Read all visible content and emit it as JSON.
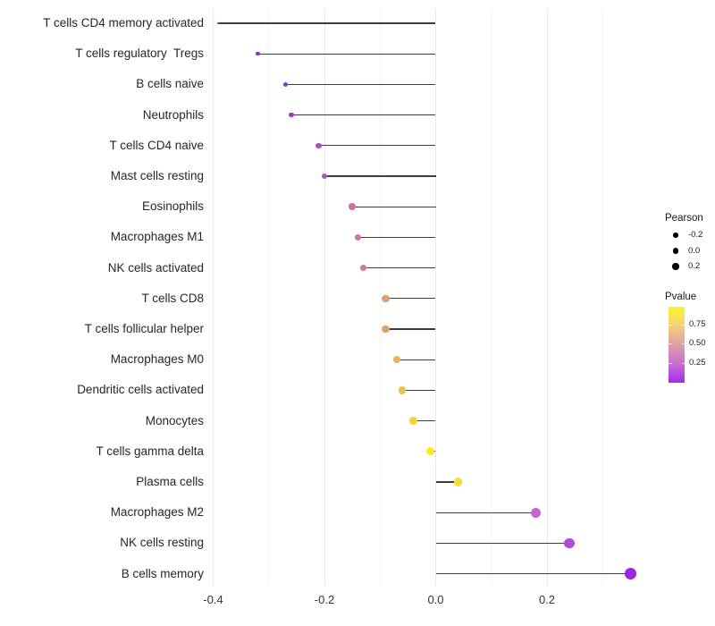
{
  "chart_data": {
    "type": "scatter",
    "variant": "lollipop",
    "orientation": "horizontal",
    "title": "",
    "xlabel": "",
    "ylabel": "",
    "x_tick_labels": [
      "-0.4",
      "-0.2",
      "0.0",
      "0.2"
    ],
    "x_tick_values": [
      -0.4,
      -0.2,
      0.0,
      0.2
    ],
    "x_minor_gridlines": [
      -0.3,
      -0.1,
      0.1,
      0.3
    ],
    "xlim": [
      -0.414,
      0.377
    ],
    "baseline": 0,
    "grid": true,
    "categories": [
      "T cells CD4 memory activated",
      "T cells regulatory  Tregs",
      "B cells naive",
      "Neutrophils",
      "T cells CD4 naive",
      "Mast cells resting",
      "Eosinophils",
      "Macrophages M1",
      "NK cells activated",
      "T cells CD8",
      "T cells follicular helper",
      "Macrophages M0",
      "Dendritic cells activated",
      "Monocytes",
      "T cells gamma delta",
      "Plasma cells",
      "Macrophages M2",
      "NK cells resting",
      "B cells memory"
    ],
    "points": [
      {
        "label": "T cells CD4 memory activated",
        "pearson": -0.39,
        "color": "#7A2ACD"
      },
      {
        "label": "T cells regulatory  Tregs",
        "pearson": -0.32,
        "color": "#8E2BD8"
      },
      {
        "label": "B cells naive",
        "pearson": -0.27,
        "color": "#9B33D4"
      },
      {
        "label": "Neutrophils",
        "pearson": -0.26,
        "color": "#9D36D2"
      },
      {
        "label": "T cells CD4 naive",
        "pearson": -0.21,
        "color": "#AE4CCB"
      },
      {
        "label": "Mast cells resting",
        "pearson": -0.2,
        "color": "#B250C8"
      },
      {
        "label": "Eosinophils",
        "pearson": -0.15,
        "color": "#CF6FA9"
      },
      {
        "label": "Macrophages M1",
        "pearson": -0.14,
        "color": "#D272A6"
      },
      {
        "label": "NK cells activated",
        "pearson": -0.13,
        "color": "#D4789E"
      },
      {
        "label": "T cells CD8",
        "pearson": -0.09,
        "color": "#E3A066"
      },
      {
        "label": "T cells follicular helper",
        "pearson": -0.09,
        "color": "#E3A166"
      },
      {
        "label": "Macrophages M0",
        "pearson": -0.07,
        "color": "#EAB25C"
      },
      {
        "label": "Dendritic cells activated",
        "pearson": -0.06,
        "color": "#EDBE53"
      },
      {
        "label": "Monocytes",
        "pearson": -0.04,
        "color": "#F2D53C"
      },
      {
        "label": "T cells gamma delta",
        "pearson": -0.01,
        "color": "#F8EC1C"
      },
      {
        "label": "Plasma cells",
        "pearson": 0.04,
        "color": "#F4DF3A"
      },
      {
        "label": "Macrophages M2",
        "pearson": 0.18,
        "color": "#C564C9"
      },
      {
        "label": "NK cells resting",
        "pearson": 0.24,
        "color": "#B44BD4"
      },
      {
        "label": "B cells memory",
        "pearson": 0.35,
        "color": "#9B27DF"
      }
    ],
    "legend": {
      "position": "right",
      "pearson": {
        "title": "Pearson",
        "labels": [
          "-0.2",
          "0.0",
          "0.2"
        ],
        "values": [
          -0.2,
          0.0,
          0.2
        ],
        "key_color": "#000000"
      },
      "pvalue": {
        "title": "Pvalue",
        "labels": [
          "0.75",
          "0.50",
          "0.25"
        ],
        "values": [
          0.75,
          0.5,
          0.25
        ],
        "gradient_top_to_bottom": [
          "#FAF32B",
          "#F7E455",
          "#F2CF7D",
          "#EAB690",
          "#DFA0A2",
          "#D287BC",
          "#C66FD0",
          "#B84EE2",
          "#A52BEB"
        ]
      }
    },
    "colors": {
      "stem": "#3D3D3D",
      "grid_major": "#E9E9E9",
      "grid_minor": "#F4F4F4",
      "background": "#FFFFFF",
      "axis_text": "#333333",
      "label_text": "#262626"
    }
  }
}
